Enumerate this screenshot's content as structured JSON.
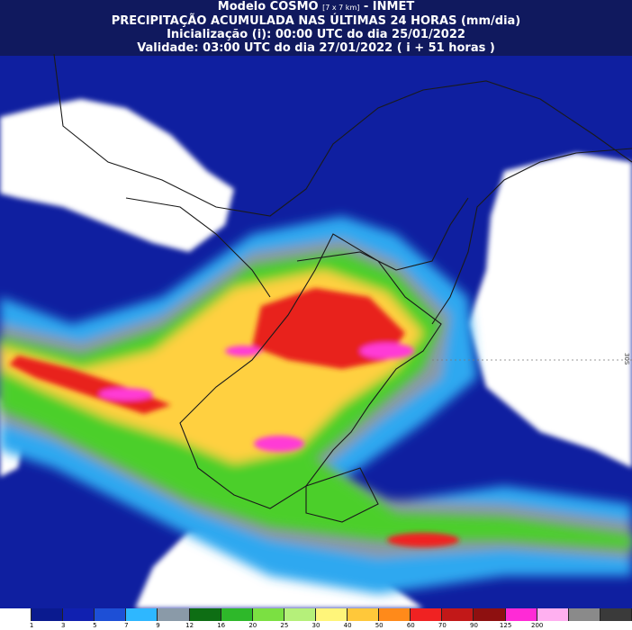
{
  "header": {
    "line1_prefix": "Modelo COSMO ",
    "line1_small": "[7 x 7 km]",
    "line1_suffix": " - INMET",
    "line2": "PRECIPITAÇÃO ACUMULADA NAS ÚLTIMAS 24 HORAS (mm/dia)",
    "line3": "Inicialização (i): 00:00 UTC do dia 25/01/2022",
    "line4": "Validade: 03:00 UTC do dia 27/01/2022 ( i + 51 horas )"
  },
  "map": {
    "latitude_label": "30S",
    "colors": {
      "ocean_light": "#ffffff",
      "deep_blue": "#0a1a8f",
      "navy": "#1020b0",
      "blue": "#1d4fd6",
      "cyan": "#2eb7ff",
      "light_cyan": "#9fe8ff",
      "gray": "#8a9aa8",
      "green_dark": "#1a9a20",
      "green": "#5ccf2c",
      "light_green": "#b5f07a",
      "yellow": "#fff57a",
      "orange_yellow": "#ffc83a",
      "orange": "#ff8a1a",
      "red": "#f02222",
      "dark_red": "#a8141a",
      "magenta": "#ff3ad6",
      "pink": "#ffb0f0"
    }
  },
  "legend": {
    "colors": [
      "#ffffff",
      "#0a1a8f",
      "#1020b0",
      "#1d4fd6",
      "#2eb7ff",
      "#8a9aa8",
      "#0e6e14",
      "#2eb82a",
      "#7be042",
      "#b5f07a",
      "#fff57a",
      "#ffc83a",
      "#ff8a1a",
      "#f02222",
      "#c21818",
      "#8e1010",
      "#ff2ad6",
      "#ffb0f0",
      "#8a8a8a",
      "#3a3a3a"
    ],
    "ticks": [
      "1",
      "3",
      "5",
      "7",
      "9",
      "12",
      "16",
      "20",
      "25",
      "30",
      "40",
      "50",
      "60",
      "70",
      "90",
      "125",
      "200"
    ]
  }
}
